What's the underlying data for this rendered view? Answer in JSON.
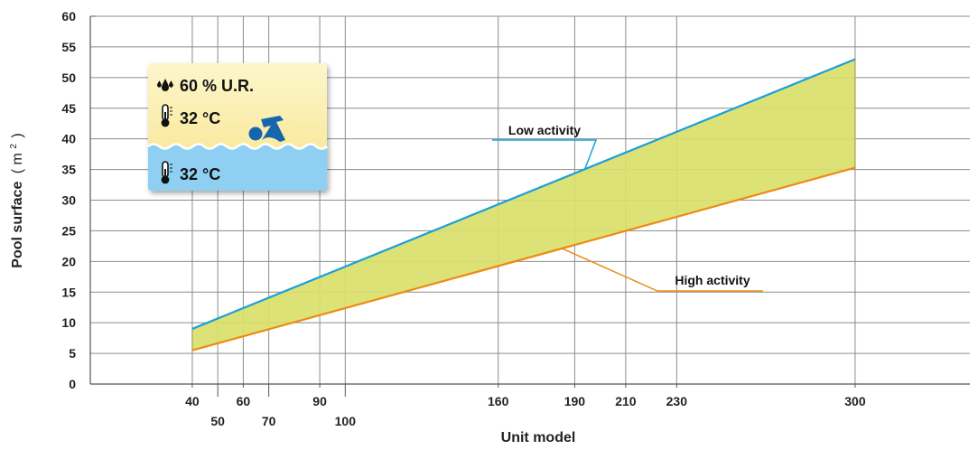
{
  "chart_data": {
    "type": "area",
    "xlabel": "Unit model",
    "ylabel": "Pool surface",
    "ylabel_unit_open": "( m",
    "ylabel_unit_sup": "2",
    "ylabel_unit_close": ")",
    "x_ticks": [
      40,
      50,
      60,
      70,
      90,
      100,
      160,
      190,
      210,
      230,
      300
    ],
    "y_ticks": [
      0,
      5,
      10,
      15,
      20,
      25,
      30,
      35,
      40,
      45,
      50,
      55,
      60
    ],
    "xlim": [
      0,
      345
    ],
    "ylim": [
      0,
      60
    ],
    "grid": true,
    "fill_color": "#d9df6a",
    "series": [
      {
        "name": "Low activity",
        "color": "#1aa0d8",
        "x": [
          40,
          300
        ],
        "y": [
          9,
          53
        ]
      },
      {
        "name": "High activity",
        "color": "#ee8a12",
        "x": [
          40,
          300
        ],
        "y": [
          5.5,
          35.3
        ]
      }
    ],
    "annotations": [
      {
        "text": "Low activity",
        "series": 0,
        "at_x": 194
      },
      {
        "text": "High activity",
        "series": 1,
        "at_x": 185
      }
    ]
  },
  "conditions_box": {
    "humidity": "60 % U.R.",
    "air_temp": "32 °C",
    "water_temp": "32 °C",
    "icons": [
      "water-drops-icon",
      "thermometer-icon",
      "swimmer-icon"
    ],
    "air_color": "#fbeeaa",
    "water_color": "#8fd0f2"
  }
}
